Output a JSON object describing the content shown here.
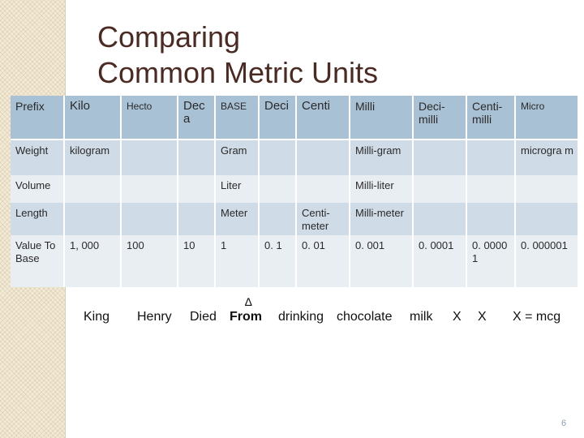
{
  "slide": {
    "title_line1": "Comparing",
    "title_line2": "Common Metric Units",
    "page_number": "6"
  },
  "table": {
    "header": [
      "Prefix",
      "Kilo",
      "Hecto",
      "Dec a",
      "BASE",
      "Deci",
      "Centi",
      "Milli",
      "Deci-milli",
      "Centi-milli",
      "Micro"
    ],
    "rows": [
      [
        "Weight",
        "kilogram",
        "",
        "",
        "Gram",
        "",
        "",
        "Milli-gram",
        "",
        "",
        "microgra m"
      ],
      [
        "Volume",
        "",
        "",
        "",
        "Liter",
        "",
        "",
        "Milli-liter",
        "",
        "",
        ""
      ],
      [
        "Length",
        "",
        "",
        "",
        "Meter",
        "",
        "Centi-meter",
        "Milli-meter",
        "",
        "",
        ""
      ],
      [
        "Value To Base",
        "1, 000",
        "100",
        "10",
        "1",
        "0. 1",
        "0. 01",
        "0. 001",
        "0. 0001",
        "0. 0000 1",
        "0. 000001"
      ]
    ]
  },
  "mnemonic": {
    "delta": "∆",
    "words": [
      "King",
      "Henry",
      "Died",
      "From",
      "drinking",
      "chocolate",
      "milk",
      "X",
      "X",
      "X = mcg"
    ]
  },
  "colors": {
    "header_bg": "#a9c1d4",
    "odd_row_bg": "#cfdbe6",
    "even_row_bg": "#e9eef3",
    "title_color": "#4a2a22"
  }
}
